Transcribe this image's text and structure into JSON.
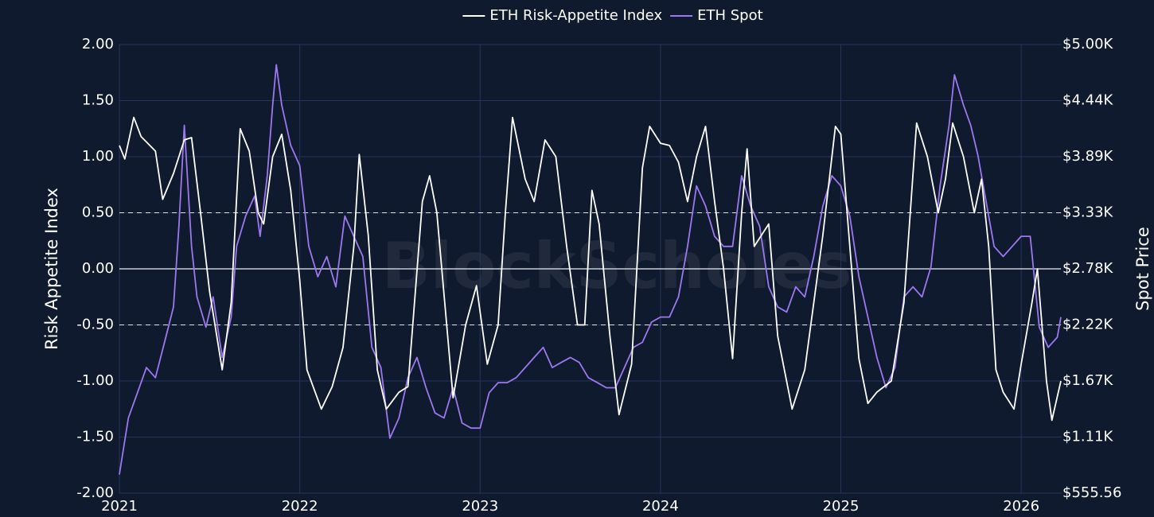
{
  "chart_data": {
    "type": "line",
    "watermark": "BlockScholes",
    "y_label": "Risk Appetite Index",
    "y2_label": "Spot Price",
    "xlim": [
      2021,
      2026.22
    ],
    "xticks": [
      2021,
      2022,
      2023,
      2024,
      2025,
      2026
    ],
    "ylim": [
      -2,
      2
    ],
    "yticks": [
      {
        "value": -2,
        "label": "-2.00"
      },
      {
        "value": -1.5,
        "label": "-1.50"
      },
      {
        "value": -1,
        "label": "-1.00"
      },
      {
        "value": -0.5,
        "label": "-0.50"
      },
      {
        "value": 0,
        "label": "0.00"
      },
      {
        "value": 0.5,
        "label": "0.50"
      },
      {
        "value": 1,
        "label": "1.00"
      },
      {
        "value": 1.5,
        "label": "1.50"
      },
      {
        "value": 2,
        "label": "2.00"
      }
    ],
    "y2lim": [
      555.56,
      5000
    ],
    "y2ticks": [
      {
        "value": 555.56,
        "label": "$555.56"
      },
      {
        "value": 1111.11,
        "label": "$1.11K"
      },
      {
        "value": 1666.67,
        "label": "$1.67K"
      },
      {
        "value": 2222.22,
        "label": "$2.22K"
      },
      {
        "value": 2777.78,
        "label": "$2.78K"
      },
      {
        "value": 3333.33,
        "label": "$3.33K"
      },
      {
        "value": 3888.89,
        "label": "$3.89K"
      },
      {
        "value": 4444.44,
        "label": "$4.44K"
      },
      {
        "value": 5000,
        "label": "$5.00K"
      }
    ],
    "grid": true,
    "legend": "top",
    "hlines": [
      {
        "y": -0.5,
        "dashed": true
      },
      {
        "y": 0,
        "dashed": false
      },
      {
        "y": 0.5,
        "dashed": true
      }
    ],
    "series": [
      {
        "name": "ETH Risk-Appetite Index",
        "color": "#ffffff",
        "axis": "y",
        "x": [
          2021.0,
          2021.03,
          2021.08,
          2021.12,
          2021.2,
          2021.24,
          2021.3,
          2021.36,
          2021.4,
          2021.45,
          2021.5,
          2021.57,
          2021.62,
          2021.67,
          2021.72,
          2021.77,
          2021.8,
          2021.85,
          2021.9,
          2021.95,
          2022.0,
          2022.04,
          2022.12,
          2022.18,
          2022.24,
          2022.3,
          2022.33,
          2022.38,
          2022.43,
          2022.48,
          2022.55,
          2022.6,
          2022.68,
          2022.72,
          2022.76,
          2022.85,
          2022.92,
          2022.98,
          2023.04,
          2023.1,
          2023.14,
          2023.18,
          2023.25,
          2023.3,
          2023.36,
          2023.42,
          2023.48,
          2023.54,
          2023.58,
          2023.62,
          2023.66,
          2023.72,
          2023.77,
          2023.84,
          2023.9,
          2023.94,
          2024.0,
          2024.05,
          2024.1,
          2024.15,
          2024.2,
          2024.25,
          2024.3,
          2024.35,
          2024.4,
          2024.45,
          2024.48,
          2024.52,
          2024.6,
          2024.65,
          2024.73,
          2024.8,
          2024.9,
          2024.97,
          2025.0,
          2025.05,
          2025.1,
          2025.15,
          2025.2,
          2025.28,
          2025.35,
          2025.42,
          2025.48,
          2025.54,
          2025.58,
          2025.62,
          2025.68,
          2025.74,
          2025.78,
          2025.82,
          2025.86,
          2025.9,
          2025.96,
          2026.0,
          2026.06,
          2026.09,
          2026.14,
          2026.17,
          2026.22
        ],
        "values": [
          1.1,
          0.98,
          1.35,
          1.18,
          1.05,
          0.62,
          0.85,
          1.15,
          1.17,
          0.5,
          -0.2,
          -0.9,
          -0.3,
          1.25,
          1.05,
          0.5,
          0.4,
          1.0,
          1.2,
          0.7,
          -0.1,
          -0.9,
          -1.25,
          -1.05,
          -0.7,
          0.2,
          1.02,
          0.3,
          -0.9,
          -1.25,
          -1.1,
          -1.05,
          0.6,
          0.83,
          0.5,
          -1.15,
          -0.5,
          -0.15,
          -0.85,
          -0.5,
          0.5,
          1.35,
          0.8,
          0.6,
          1.15,
          1.0,
          0.2,
          -0.5,
          -0.5,
          0.7,
          0.4,
          -0.6,
          -1.3,
          -0.85,
          0.9,
          1.27,
          1.12,
          1.1,
          0.95,
          0.6,
          1.0,
          1.27,
          0.6,
          0.0,
          -0.8,
          0.5,
          1.07,
          0.2,
          0.4,
          -0.6,
          -1.25,
          -0.9,
          0.3,
          1.27,
          1.2,
          0.2,
          -0.8,
          -1.2,
          -1.1,
          -1.0,
          -0.3,
          1.3,
          1.0,
          0.5,
          0.8,
          1.3,
          1.0,
          0.5,
          0.8,
          0.2,
          -0.9,
          -1.1,
          -1.25,
          -0.85,
          -0.3,
          0.0,
          -1.0,
          -1.35,
          -1.0
        ]
      },
      {
        "name": "ETH Spot",
        "color": "#9b78ee",
        "axis": "y2",
        "x": [
          2021.0,
          2021.05,
          2021.1,
          2021.15,
          2021.2,
          2021.25,
          2021.3,
          2021.33,
          2021.36,
          2021.4,
          2021.43,
          2021.48,
          2021.52,
          2021.57,
          2021.62,
          2021.65,
          2021.7,
          2021.75,
          2021.78,
          2021.82,
          2021.85,
          2021.87,
          2021.9,
          2021.95,
          2022.0,
          2022.05,
          2022.1,
          2022.15,
          2022.2,
          2022.25,
          2022.3,
          2022.35,
          2022.4,
          2022.45,
          2022.5,
          2022.55,
          2022.6,
          2022.65,
          2022.7,
          2022.75,
          2022.8,
          2022.85,
          2022.9,
          2022.95,
          2023.0,
          2023.05,
          2023.1,
          2023.15,
          2023.2,
          2023.25,
          2023.3,
          2023.35,
          2023.4,
          2023.45,
          2023.5,
          2023.55,
          2023.6,
          2023.65,
          2023.7,
          2023.75,
          2023.8,
          2023.85,
          2023.9,
          2023.95,
          2024.0,
          2024.05,
          2024.1,
          2024.15,
          2024.2,
          2024.25,
          2024.3,
          2024.35,
          2024.4,
          2024.45,
          2024.5,
          2024.55,
          2024.6,
          2024.65,
          2024.7,
          2024.75,
          2024.8,
          2024.85,
          2024.9,
          2024.95,
          2025.0,
          2025.05,
          2025.1,
          2025.15,
          2025.2,
          2025.25,
          2025.3,
          2025.35,
          2025.4,
          2025.45,
          2025.5,
          2025.55,
          2025.6,
          2025.63,
          2025.68,
          2025.72,
          2025.76,
          2025.8,
          2025.85,
          2025.9,
          2025.95,
          2026.0,
          2026.05,
          2026.1,
          2026.15,
          2026.2,
          2026.22
        ],
        "values": [
          740,
          1300,
          1550,
          1800,
          1700,
          2050,
          2400,
          3200,
          4200,
          3000,
          2500,
          2200,
          2500,
          1900,
          2300,
          3000,
          3300,
          3500,
          3100,
          3700,
          4400,
          4800,
          4400,
          4000,
          3800,
          3000,
          2700,
          2900,
          2600,
          3300,
          3100,
          2900,
          2000,
          1800,
          1100,
          1300,
          1700,
          1900,
          1600,
          1350,
          1300,
          1600,
          1250,
          1200,
          1200,
          1550,
          1650,
          1650,
          1700,
          1800,
          1900,
          2000,
          1800,
          1850,
          1900,
          1850,
          1700,
          1650,
          1600,
          1600,
          1800,
          2000,
          2050,
          2250,
          2300,
          2300,
          2500,
          3000,
          3600,
          3400,
          3100,
          3000,
          3000,
          3700,
          3400,
          3200,
          2600,
          2400,
          2350,
          2600,
          2500,
          2900,
          3400,
          3700,
          3600,
          3300,
          2700,
          2300,
          1900,
          1600,
          1800,
          2500,
          2600,
          2500,
          2800,
          3600,
          4200,
          4700,
          4400,
          4200,
          3900,
          3500,
          3000,
          2900,
          3000,
          3100,
          3100,
          2200,
          2000,
          2100,
          2300
        ]
      }
    ]
  }
}
